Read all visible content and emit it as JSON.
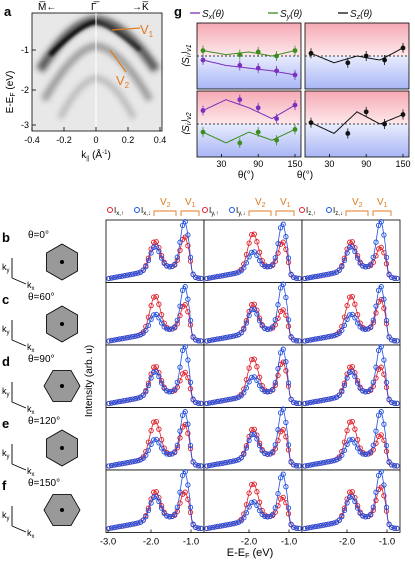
{
  "panels": {
    "a": "a",
    "b": "b",
    "c": "c",
    "d": "d",
    "e": "e",
    "f": "f",
    "g": "g"
  },
  "arpes": {
    "ylabel": "E-E",
    "ylabel_sub": "F",
    "ylabel_unit": " (eV)",
    "xlabel": "k",
    "xlabel_sub": "||",
    "xlabel_unit": " (Å",
    "xlabel_sup": "-1",
    "xlabel_end": ")",
    "xticks": [
      "-0.4",
      "-0.2",
      "0",
      "0.2",
      "0.4"
    ],
    "yticks": [
      "-1",
      "-2",
      "-3"
    ],
    "top_left": "M̅←",
    "top_mid": "Γ̅",
    "top_right": "→K̅",
    "band_v1": "V",
    "band_v1_sub": "1",
    "band_v2": "V",
    "band_v2_sub": "2"
  },
  "orientations": [
    {
      "label": "θ=0°",
      "angle": 0
    },
    {
      "label": "θ=60°",
      "angle": 60
    },
    {
      "label": "θ=90°",
      "angle": 90
    },
    {
      "label": "θ=120°",
      "angle": 120
    },
    {
      "label": "θ=150°",
      "angle": 150
    }
  ],
  "axes_labels": {
    "ky": "k",
    "ky_sub": "y",
    "kx": "k",
    "kx_sub": "x"
  },
  "legend_g": [
    {
      "label": "S",
      "sub": "x",
      "arg": "(θ)",
      "color": "#7b2fbe"
    },
    {
      "label": "S",
      "sub": "y",
      "arg": "(θ)",
      "color": "#3c8c1e"
    },
    {
      "label": "S",
      "sub": "z",
      "arg": "(θ)",
      "color": "#111111"
    }
  ],
  "g_panel": {
    "xticks": [
      "30",
      "90",
      "150"
    ],
    "xlabel": "θ(°)",
    "ylabel_v1": "⟨S",
    "ylabel_v1_sub": "i",
    "ylabel_v1_end": "⟩",
    "ylabel_v1_tag": "v1",
    "ylabel_v2_tag": "v2",
    "chart_data": {
      "type": "scatter",
      "theta": [
        0,
        60,
        90,
        120,
        150
      ],
      "v1": {
        "Sx": [
          -0.15,
          -0.35,
          -0.45,
          -0.55,
          -0.7
        ],
        "Sy": [
          0.2,
          0.05,
          0.15,
          0.0,
          0.2
        ],
        "Sz": [
          0.1,
          -0.25,
          0.0,
          -0.15,
          0.3
        ]
      },
      "v2": {
        "Sx": [
          0.5,
          0.9,
          0.6,
          0.2,
          0.7
        ],
        "Sy": [
          -0.3,
          -0.7,
          -0.3,
          -0.6,
          -0.2
        ],
        "Sz": [
          0.05,
          -0.35,
          0.45,
          0.0,
          0.35
        ]
      },
      "ylim": [
        -1,
        1
      ]
    }
  },
  "spectra": {
    "legend": [
      {
        "up": "I",
        "up_sub": "x,↑",
        "dn": "I",
        "dn_sub": "x,↓"
      },
      {
        "up": "I",
        "up_sub": "y,↑",
        "dn": "I",
        "dn_sub": "y,↓"
      },
      {
        "up": "I",
        "up_sub": "z,↑",
        "dn": "I",
        "dn_sub": "z,↓"
      }
    ],
    "v2": "V",
    "v2_sub": "2",
    "v1": "V",
    "v1_sub": "1",
    "ylabel": "Intensity (arb. u)",
    "xlabel": "E-E",
    "xlabel_sub": "F",
    "xlabel_unit": " (eV)",
    "xticks": [
      "-3.0",
      "-2.0",
      "-1.0",
      "-2.0",
      "-1.0",
      "-2.0",
      "-1.0"
    ],
    "colors": {
      "up": "#e0202a",
      "down": "#2050e0"
    }
  }
}
